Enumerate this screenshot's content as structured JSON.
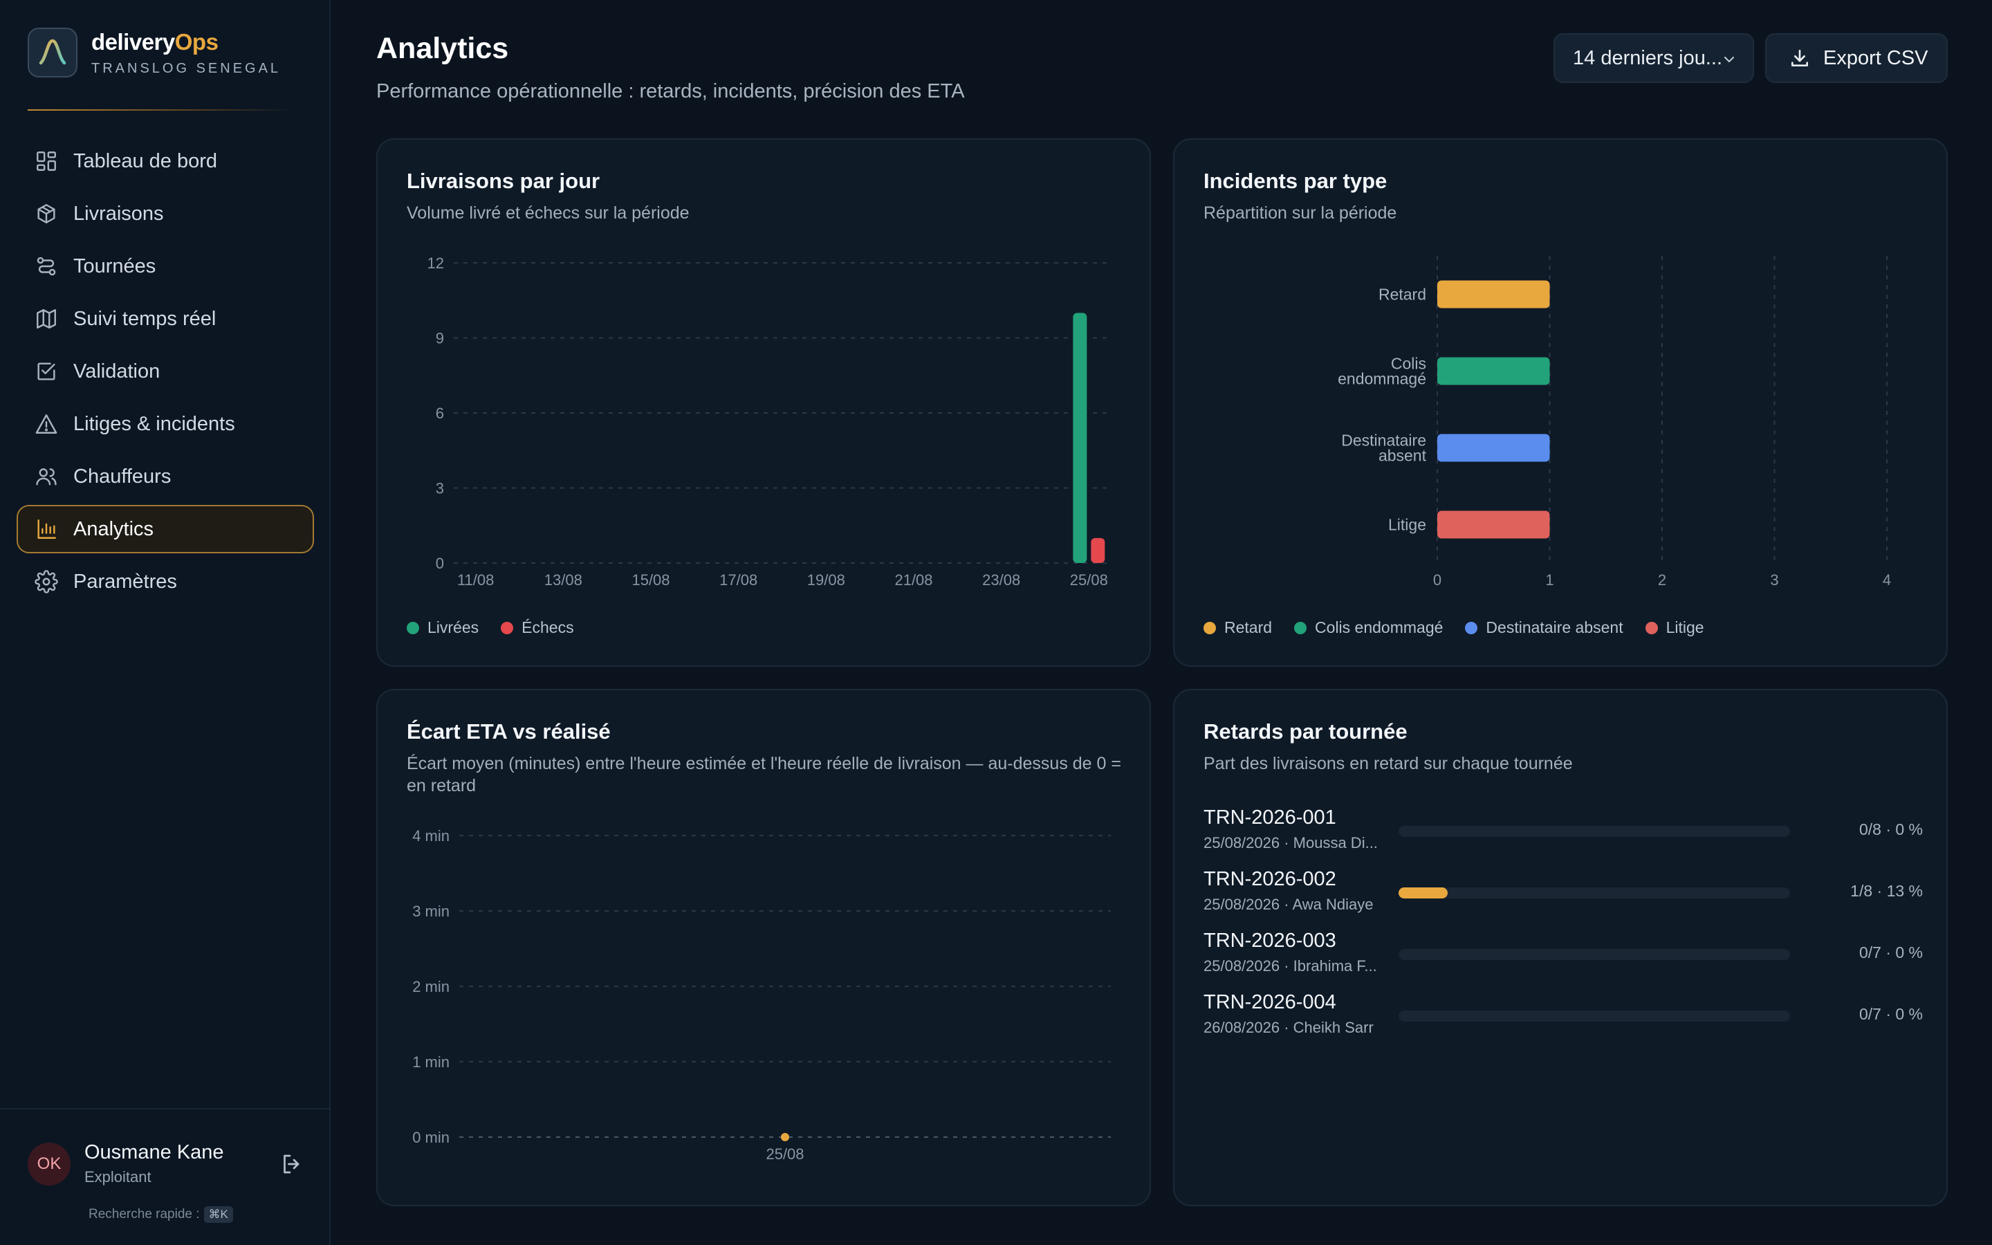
{
  "brand": {
    "name_main": "delivery",
    "name_accent": "Ops",
    "subtitle": "TRANSLOG SENEGAL"
  },
  "nav": [
    {
      "label": "Tableau de bord",
      "icon": "dashboard-icon",
      "active": false
    },
    {
      "label": "Livraisons",
      "icon": "package-icon",
      "active": false
    },
    {
      "label": "Tournées",
      "icon": "route-icon",
      "active": false
    },
    {
      "label": "Suivi temps réel",
      "icon": "map-icon",
      "active": false
    },
    {
      "label": "Validation",
      "icon": "checkbox-icon",
      "active": false
    },
    {
      "label": "Litiges & incidents",
      "icon": "warning-icon",
      "active": false
    },
    {
      "label": "Chauffeurs",
      "icon": "users-icon",
      "active": false
    },
    {
      "label": "Analytics",
      "icon": "bar-chart-icon",
      "active": true
    },
    {
      "label": "Paramètres",
      "icon": "gear-icon",
      "active": false
    }
  ],
  "user": {
    "initials": "OK",
    "name": "Ousmane Kane",
    "role": "Exploitant"
  },
  "quick_search": {
    "label": "Recherche rapide :",
    "shortcut": "⌘K"
  },
  "header": {
    "title": "Analytics",
    "subtitle": "Performance opérationnelle : retards, incidents, précision des ETA",
    "range_value": "14 derniers jou...",
    "export_label": "Export CSV"
  },
  "colors": {
    "accent": "#e8a83e",
    "livrees": "#22a37a",
    "echecs": "#e5484d",
    "retard": "#e8a83e",
    "colis": "#22a37a",
    "destinataire": "#5b8def",
    "litige": "#e0625c"
  },
  "cards": {
    "livraisons": {
      "title": "Livraisons par jour",
      "subtitle": "Volume livré et échecs sur la période"
    },
    "incidents": {
      "title": "Incidents par type",
      "subtitle": "Répartition sur la période"
    },
    "eta": {
      "title": "Écart ETA vs réalisé",
      "subtitle": "Écart moyen (minutes) entre l'heure estimée et l'heure réelle de livraison — au-dessus de 0 = en retard"
    },
    "retards": {
      "title": "Retards par tournée",
      "subtitle": "Part des livraisons en retard sur chaque tournée"
    }
  },
  "legends": {
    "livraisons": [
      {
        "label": "Livrées",
        "color": "#22a37a"
      },
      {
        "label": "Échecs",
        "color": "#e5484d"
      }
    ],
    "incidents": [
      {
        "label": "Retard",
        "color": "#e8a83e"
      },
      {
        "label": "Colis endommagé",
        "color": "#22a37a"
      },
      {
        "label": "Destinataire absent",
        "color": "#5b8def"
      },
      {
        "label": "Litige",
        "color": "#e0625c"
      }
    ]
  },
  "retards_rows": [
    {
      "id": "TRN-2026-001",
      "meta": "25/08/2026 · Moussa Di...",
      "stat": "0/8 · 0 %",
      "fraction": 0
    },
    {
      "id": "TRN-2026-002",
      "meta": "25/08/2026 · Awa Ndiaye",
      "stat": "1/8 · 13 %",
      "fraction": 0.125
    },
    {
      "id": "TRN-2026-003",
      "meta": "25/08/2026 · Ibrahima F...",
      "stat": "0/7 · 0 %",
      "fraction": 0
    },
    {
      "id": "TRN-2026-004",
      "meta": "26/08/2026 · Cheikh Sarr",
      "stat": "0/7 · 0 %",
      "fraction": 0
    }
  ],
  "chart_data": [
    {
      "type": "bar",
      "title": "Livraisons par jour",
      "categories": [
        "11/08",
        "12/08",
        "13/08",
        "14/08",
        "15/08",
        "16/08",
        "17/08",
        "18/08",
        "19/08",
        "20/08",
        "21/08",
        "22/08",
        "23/08",
        "24/08",
        "25/08"
      ],
      "x_tick_labels": [
        "11/08",
        "13/08",
        "15/08",
        "17/08",
        "19/08",
        "21/08",
        "23/08",
        "25/08"
      ],
      "series": [
        {
          "name": "Livrées",
          "color": "#22a37a",
          "values": [
            0,
            0,
            0,
            0,
            0,
            0,
            0,
            0,
            0,
            0,
            0,
            0,
            0,
            0,
            10
          ]
        },
        {
          "name": "Échecs",
          "color": "#e5484d",
          "values": [
            0,
            0,
            0,
            0,
            0,
            0,
            0,
            0,
            0,
            0,
            0,
            0,
            0,
            0,
            1
          ]
        }
      ],
      "yticks": [
        0,
        3,
        6,
        9,
        12
      ],
      "ylim": [
        0,
        12
      ],
      "grid": true,
      "legend": "bottom-left"
    },
    {
      "type": "bar",
      "orientation": "horizontal",
      "title": "Incidents par type",
      "categories": [
        "Retard",
        "Colis endommagé",
        "Destinataire absent",
        "Litige"
      ],
      "category_lines": [
        [
          "Retard"
        ],
        [
          "Colis",
          "endommagé"
        ],
        [
          "Destinataire",
          "absent"
        ],
        [
          "Litige"
        ]
      ],
      "values": [
        1,
        1,
        1,
        1
      ],
      "colors": [
        "#e8a83e",
        "#22a37a",
        "#5b8def",
        "#e0625c"
      ],
      "xticks": [
        0,
        1,
        2,
        3,
        4
      ],
      "xlim": [
        0,
        4
      ],
      "grid": true,
      "legend": "bottom-left"
    },
    {
      "type": "line",
      "title": "Écart ETA vs réalisé",
      "x": [
        "25/08"
      ],
      "series": [
        {
          "color": "#e8a83e",
          "values": [
            0
          ]
        }
      ],
      "ytick_labels": [
        "0 min",
        "1 min",
        "2 min",
        "3 min",
        "4 min"
      ],
      "yticks": [
        0,
        1,
        2,
        3,
        4
      ],
      "ylim": [
        0,
        4
      ],
      "grid": true
    }
  ]
}
